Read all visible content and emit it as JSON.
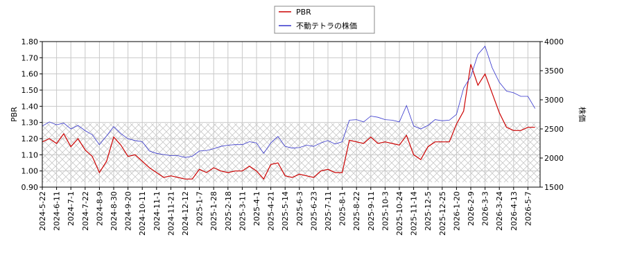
{
  "chart_data": {
    "type": "line",
    "x": [
      "2024-5-22",
      null,
      "2024-6-11",
      null,
      "2024-7-1",
      null,
      "2024-7-22",
      null,
      "2024-8-9",
      null,
      "2024-8-30",
      null,
      "2024-9-20",
      null,
      "2024-10-11",
      null,
      "2024-11-1",
      null,
      "2024-11-21",
      null,
      "2024-12-12",
      null,
      "2025-1-7",
      null,
      "2025-1-28",
      null,
      "2025-2-18",
      null,
      "2025-3-11",
      null,
      "2025-4-1",
      null,
      "2025-4-21",
      null,
      "2025-5-14",
      null,
      "2025-6-3",
      null,
      "2025-6-23",
      null,
      "2025-7-11",
      null,
      "2025-8-1",
      null,
      "2025-8-22",
      null,
      "2025-9-11",
      null,
      "2025-10-3",
      null,
      "2025-10-24",
      null,
      "2025-11-14",
      null,
      "2025-12-5",
      null,
      "2025-12-25",
      null,
      "2026-1-20",
      null,
      "2026-2-9",
      null,
      "2026-3-3",
      null,
      "2026-3-24",
      null,
      "2026-4-13",
      null,
      "2026-5-7",
      null
    ],
    "series": [
      {
        "name": "PBR",
        "color": "#cc0000",
        "values": [
          1.18,
          1.2,
          1.17,
          1.23,
          1.15,
          1.2,
          1.13,
          1.09,
          0.99,
          1.06,
          1.21,
          1.16,
          1.09,
          1.1,
          1.06,
          1.02,
          0.99,
          0.96,
          0.97,
          0.96,
          0.95,
          0.95,
          1.01,
          0.99,
          1.02,
          1.0,
          0.99,
          1.0,
          1.0,
          1.03,
          1.0,
          0.95,
          1.04,
          1.05,
          0.97,
          0.96,
          0.98,
          0.97,
          0.96,
          1.0,
          1.01,
          0.99,
          0.99,
          1.19,
          1.18,
          1.17,
          1.21,
          1.17,
          1.18,
          1.17,
          1.16,
          1.22,
          1.1,
          1.07,
          1.15,
          1.18,
          1.18,
          1.18,
          1.29,
          1.37,
          1.66,
          1.53,
          1.6,
          1.48,
          1.36,
          1.27,
          1.25,
          1.25,
          1.27,
          1.27
        ]
      },
      {
        "name": "不動テトラの株価",
        "color": "#3333cc",
        "axis": "y2",
        "values": [
          2550,
          2620,
          2570,
          2600,
          2500,
          2560,
          2470,
          2400,
          2230,
          2380,
          2540,
          2420,
          2330,
          2300,
          2280,
          2120,
          2080,
          2060,
          2040,
          2040,
          2010,
          2030,
          2120,
          2130,
          2160,
          2200,
          2220,
          2230,
          2230,
          2280,
          2260,
          2080,
          2260,
          2370,
          2200,
          2170,
          2180,
          2220,
          2200,
          2260,
          2300,
          2240,
          2280,
          2650,
          2660,
          2620,
          2720,
          2700,
          2660,
          2650,
          2620,
          2900,
          2550,
          2500,
          2560,
          2660,
          2640,
          2650,
          2750,
          3200,
          3400,
          3780,
          3920,
          3550,
          3300,
          3150,
          3120,
          3060,
          3060,
          2850
        ]
      }
    ],
    "y_label": "PBR",
    "y2_label": "株価",
    "ylim": [
      0.9,
      1.8
    ],
    "yticks": [
      {
        "value": 0.9,
        "label": "0.90"
      },
      {
        "value": 1.0,
        "label": "1.00"
      },
      {
        "value": 1.1,
        "label": "1.10"
      },
      {
        "value": 1.2,
        "label": "1.20"
      },
      {
        "value": 1.3,
        "label": "1.30"
      },
      {
        "value": 1.4,
        "label": "1.40"
      },
      {
        "value": 1.5,
        "label": "1.50"
      },
      {
        "value": 1.6,
        "label": "1.60"
      },
      {
        "value": 1.7,
        "label": "1.70"
      },
      {
        "value": 1.8,
        "label": "1.80"
      }
    ],
    "y2lim": [
      1500,
      4000
    ],
    "y2ticks": [
      1500,
      2000,
      2500,
      3000,
      3500,
      4000
    ],
    "grid": true
  }
}
